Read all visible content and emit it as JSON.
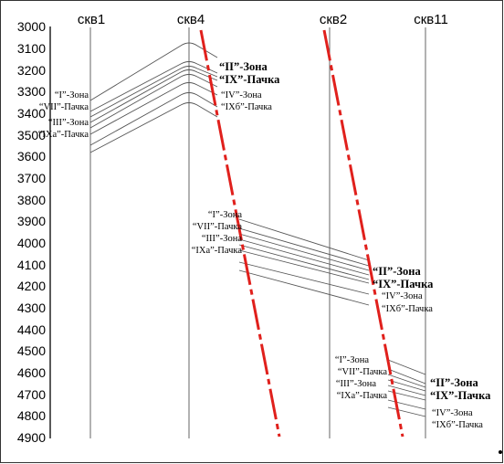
{
  "depth_axis": {
    "ticks": [
      "3000",
      "3100",
      "3200",
      "3300",
      "3400",
      "3500",
      "3600",
      "3700",
      "3800",
      "3900",
      "4000",
      "4100",
      "4200",
      "4300",
      "4400",
      "4500",
      "4600",
      "4700",
      "4800",
      "4900"
    ]
  },
  "wells": [
    "скв1",
    "скв4",
    "скв2",
    "скв11"
  ],
  "labels": {
    "w1": [
      "“I”-Зона",
      "“VII”-Пачка",
      "“III”-Зона",
      "“IXa”-Пачка"
    ],
    "g1_bold": [
      "“II”-Зона",
      "“IX”-Пачка"
    ],
    "g1_small": [
      "“IV”-Зона",
      "“IXб”-Пачка"
    ],
    "w4": [
      "“I”-Зона",
      "“VII”-Пачка",
      "“III”-Зона",
      "“IXa”-Пачка"
    ],
    "g2_bold": [
      "“II”-Зона",
      "“IX”-Пачка"
    ],
    "g2_small": [
      "“IV”-Зона",
      "“IXб”-Пачка"
    ],
    "w2": [
      "“I”-Зона",
      "“VII”-Пачка",
      "“III”-Зона",
      "“IXa”-Пачка"
    ],
    "g3_bold": [
      "“II”-Зона",
      "“IX”-Пачка"
    ],
    "g3_small": [
      "“IV”-Зона",
      "“IXб”-Пачка"
    ]
  },
  "colors": {
    "fault": "#e0201c",
    "line": "#555555",
    "frame": "#333333"
  }
}
